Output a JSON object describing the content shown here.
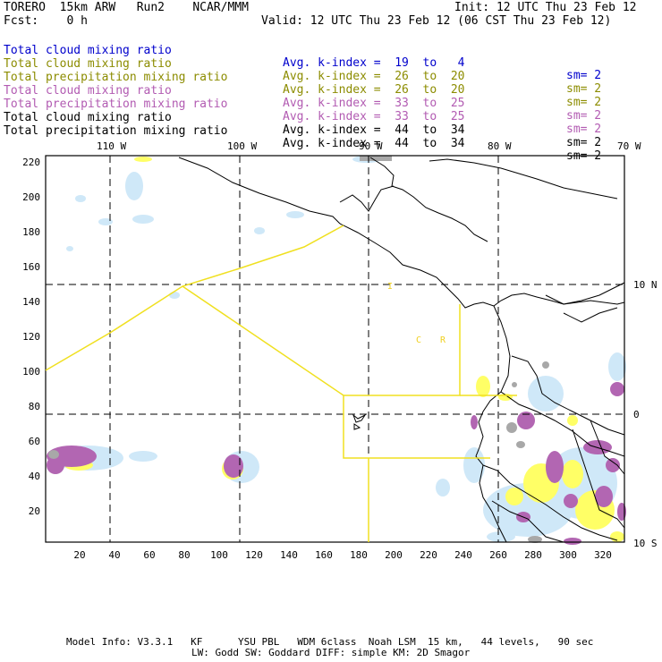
{
  "header": {
    "title": "TORERO  15km ARW   Run2    NCAR/MMM",
    "init": "Init: 12 UTC Thu 23 Feb 12",
    "fcst": "Fcst:    0 h",
    "valid": "Valid: 12 UTC Thu 23 Feb 12 (06 CST Thu 23 Feb 12)"
  },
  "legend": [
    {
      "name": "Total cloud mixing ratio",
      "index": "Avg. k-index =  19  to   4",
      "sm": "sm= 2",
      "color": "#0000cc"
    },
    {
      "name": "Total cloud mixing ratio",
      "index": "Avg. k-index =  26  to  20",
      "sm": "sm= 2",
      "color": "#8c8c00"
    },
    {
      "name": "Total precipitation mixing ratio",
      "index": "Avg. k-index =  26  to  20",
      "sm": "sm= 2",
      "color": "#8c8c00"
    },
    {
      "name": "Total cloud mixing ratio",
      "index": "Avg. k-index =  33  to  25",
      "sm": "sm= 2",
      "color": "#b25bb2"
    },
    {
      "name": "Total precipitation mixing ratio",
      "index": "Avg. k-index =  33  to  25",
      "sm": "sm= 2",
      "color": "#b25bb2"
    },
    {
      "name": "Total cloud mixing ratio",
      "index": "Avg. k-index =  44  to  34",
      "sm": "sm= 2",
      "color": "#000000"
    },
    {
      "name": "Total precipitation mixing ratio",
      "index": "Avg. k-index =  44  to  34",
      "sm": "sm= 2",
      "color": "#000000"
    }
  ],
  "map": {
    "top_lon_labels": [
      "110 W",
      "100 W",
      "90 W",
      "80 W",
      "70 W"
    ],
    "right_lat_labels": [
      "10 N",
      "0",
      "10 S"
    ],
    "y_ticks": [
      "220",
      "200",
      "180",
      "160",
      "140",
      "120",
      "100",
      "80",
      "60",
      "40",
      "20"
    ],
    "x_ticks": [
      "20",
      "40",
      "60",
      "80",
      "100",
      "120",
      "140",
      "160",
      "180",
      "200",
      "220",
      "240",
      "260",
      "280",
      "300",
      "320"
    ],
    "region_labels": [
      "C",
      "R",
      "I"
    ]
  },
  "colors": {
    "light_blue": "#cfe8f8",
    "yellow": "#ffff66",
    "purple": "#b266b2",
    "gray": "#a8a8a8",
    "box": "#f0e020"
  },
  "footer": {
    "line1": "Model Info: V3.3.1   KF      YSU PBL   WDM 6class  Noah LSM  15 km,   44 levels,   90 sec",
    "line2": "LW: Godd SW: Goddard DIFF: simple KM: 2D Smagor"
  }
}
